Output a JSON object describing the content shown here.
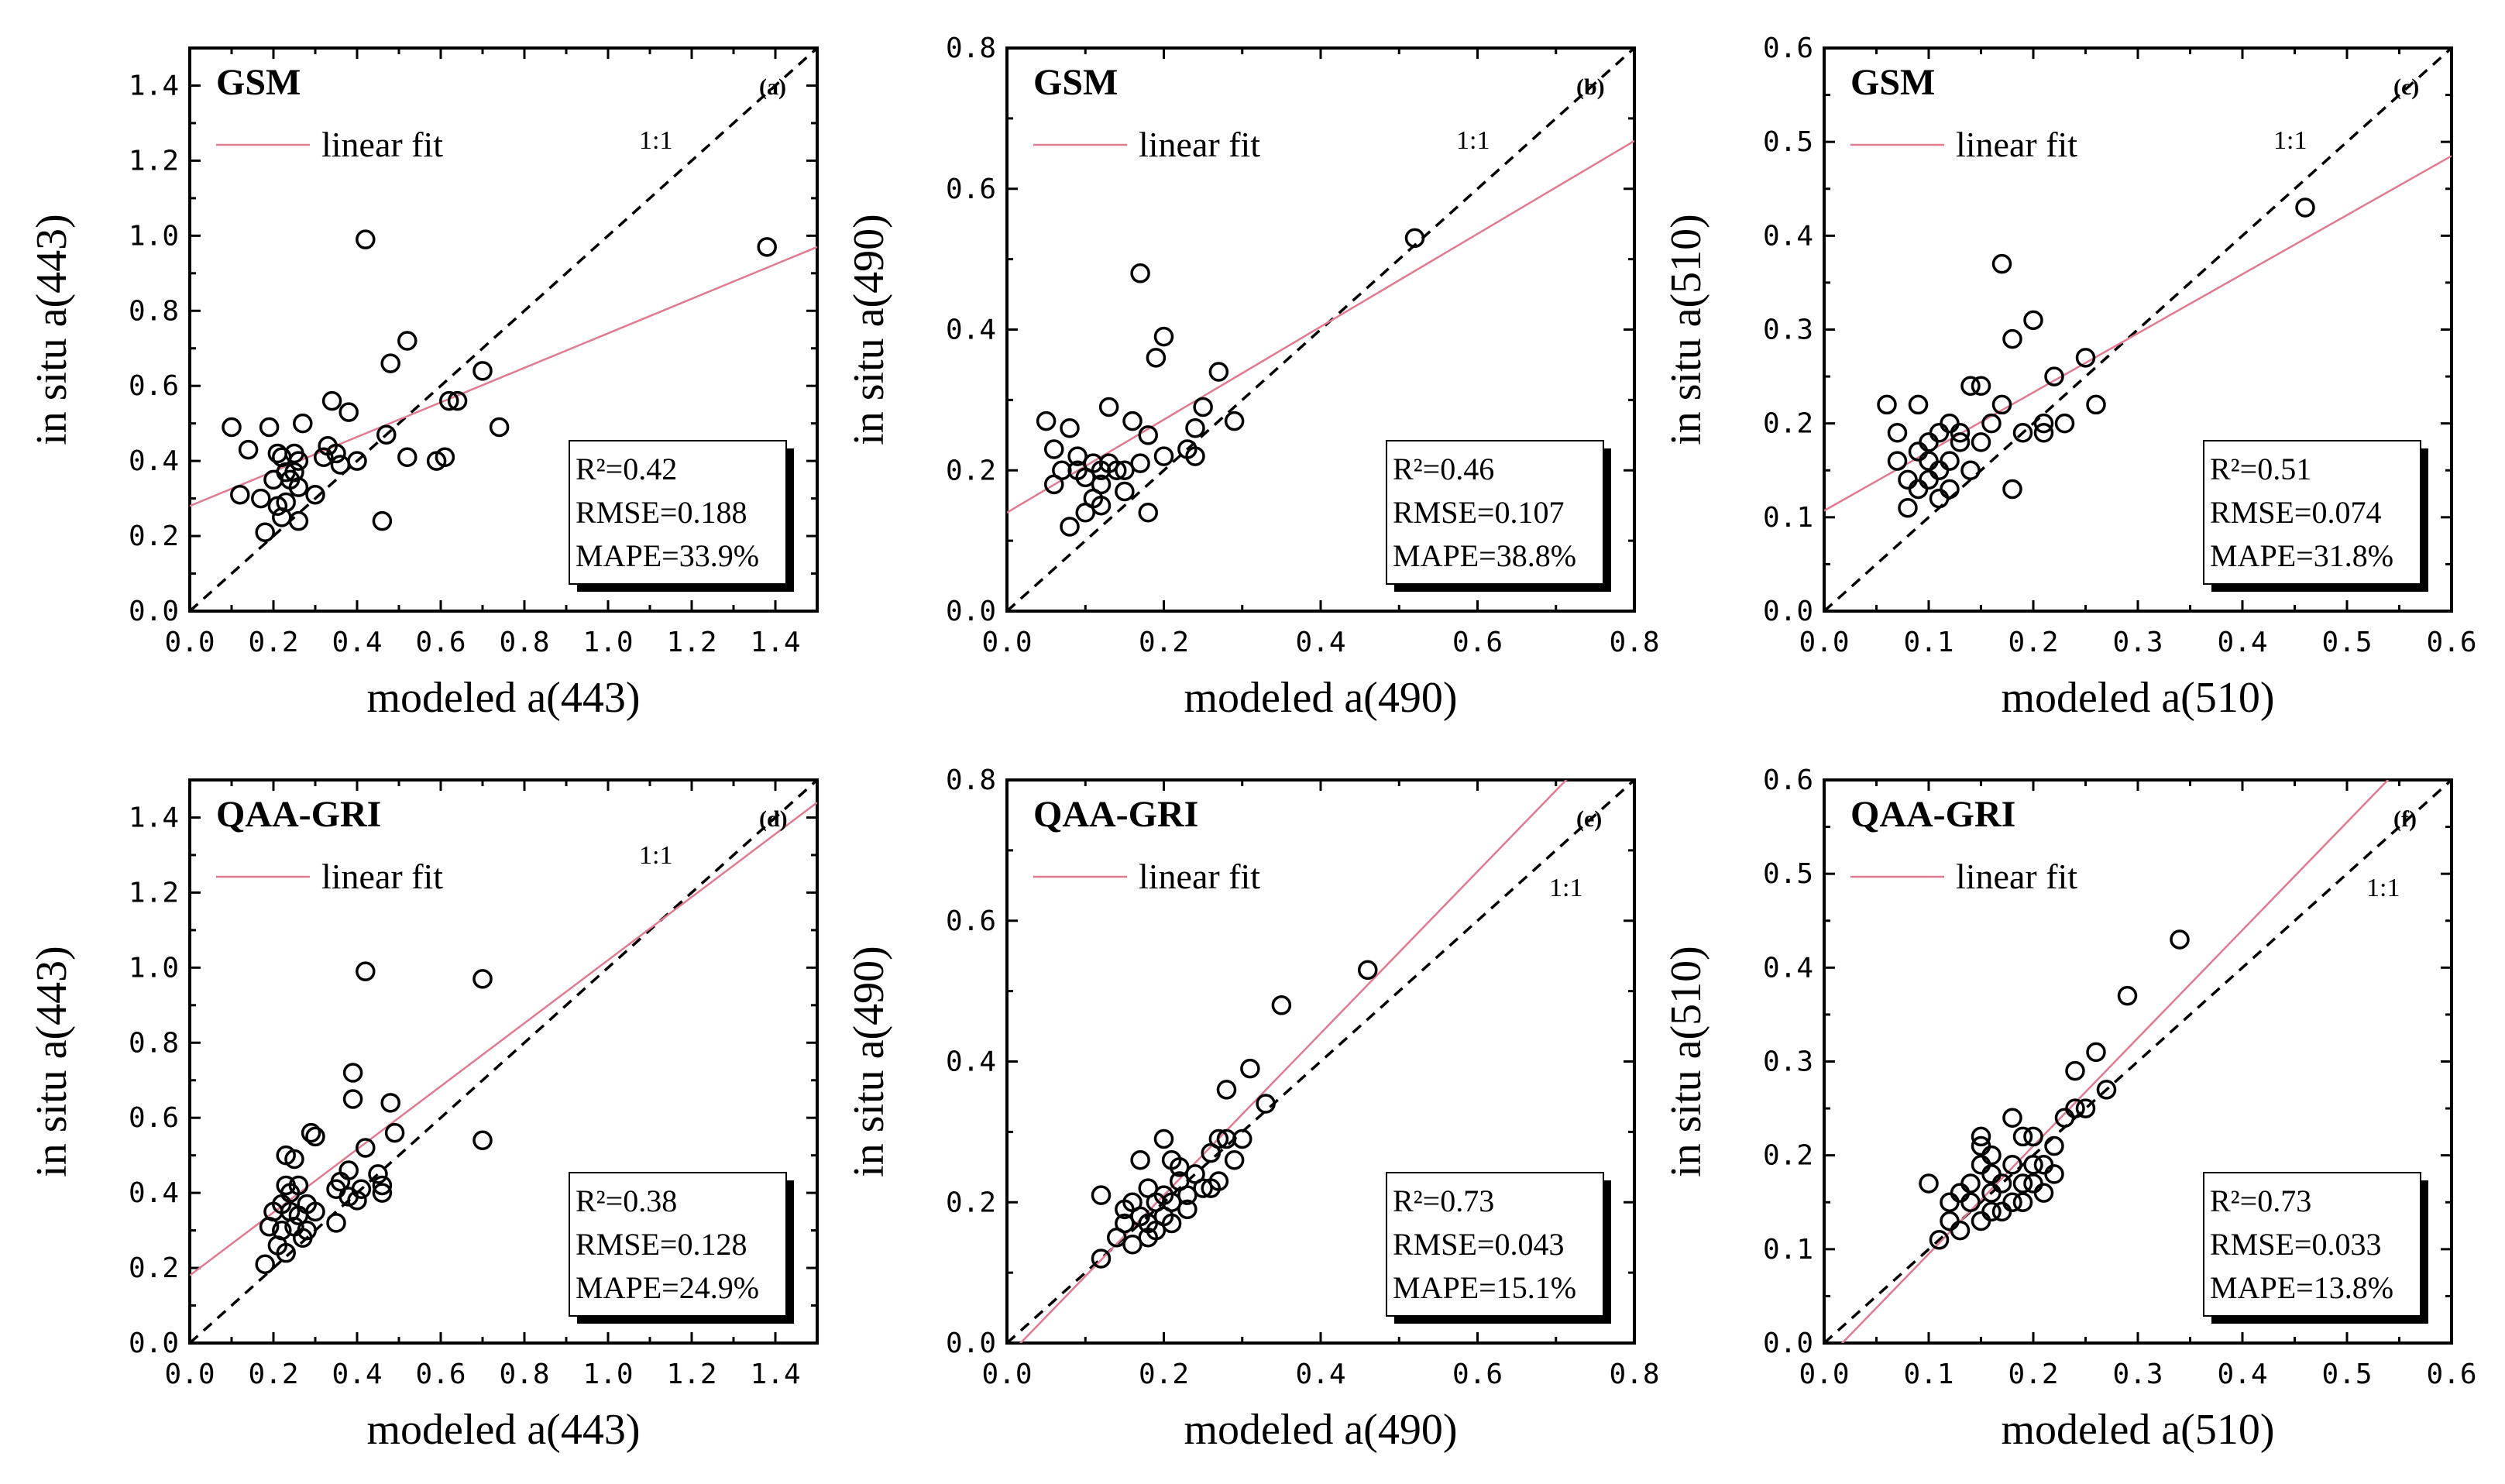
{
  "figure": {
    "colors": {
      "axis": "#000000",
      "fit_line": "#e07a8f",
      "one_to_one": "#000000",
      "marker": "#000000"
    }
  },
  "chart_data": [
    {
      "id": "a",
      "type": "scatter",
      "method": "GSM",
      "tag": "(a)",
      "xlabel": "modeled a(443)",
      "ylabel": "in situ a(443)",
      "xlim": [
        0,
        1.5
      ],
      "ylim": [
        0,
        1.5
      ],
      "xticks": [
        "0.0",
        "0.2",
        "0.4",
        "0.6",
        "0.8",
        "1.0",
        "1.2",
        "1.4"
      ],
      "yticks": [
        "0.0",
        "0.2",
        "0.4",
        "0.6",
        "0.8",
        "1.0",
        "1.2",
        "1.4"
      ],
      "legend_label": "linear fit",
      "ref_label": "1:1",
      "stats": [
        "R²=0.42",
        "RMSE=0.188",
        "MAPE=33.9%"
      ],
      "fit": {
        "slope": 0.46,
        "intercept": 0.28
      },
      "points": [
        [
          0.1,
          0.49
        ],
        [
          0.12,
          0.31
        ],
        [
          0.14,
          0.43
        ],
        [
          0.17,
          0.3
        ],
        [
          0.18,
          0.21
        ],
        [
          0.19,
          0.49
        ],
        [
          0.2,
          0.35
        ],
        [
          0.21,
          0.42
        ],
        [
          0.21,
          0.28
        ],
        [
          0.22,
          0.41
        ],
        [
          0.22,
          0.25
        ],
        [
          0.23,
          0.29
        ],
        [
          0.23,
          0.37
        ],
        [
          0.24,
          0.35
        ],
        [
          0.25,
          0.42
        ],
        [
          0.25,
          0.37
        ],
        [
          0.26,
          0.4
        ],
        [
          0.26,
          0.33
        ],
        [
          0.26,
          0.24
        ],
        [
          0.27,
          0.5
        ],
        [
          0.3,
          0.31
        ],
        [
          0.32,
          0.41
        ],
        [
          0.33,
          0.44
        ],
        [
          0.34,
          0.56
        ],
        [
          0.35,
          0.42
        ],
        [
          0.36,
          0.39
        ],
        [
          0.38,
          0.53
        ],
        [
          0.4,
          0.4
        ],
        [
          0.42,
          0.99
        ],
        [
          0.46,
          0.24
        ],
        [
          0.47,
          0.47
        ],
        [
          0.48,
          0.66
        ],
        [
          0.52,
          0.41
        ],
        [
          0.52,
          0.72
        ],
        [
          0.59,
          0.4
        ],
        [
          0.61,
          0.41
        ],
        [
          0.62,
          0.56
        ],
        [
          0.64,
          0.56
        ],
        [
          0.7,
          0.64
        ],
        [
          0.74,
          0.49
        ],
        [
          1.38,
          0.97
        ]
      ]
    },
    {
      "id": "b",
      "type": "scatter",
      "method": "GSM",
      "tag": "(b)",
      "xlabel": "modeled a(490)",
      "ylabel": "in situ a(490)",
      "xlim": [
        0,
        0.8
      ],
      "ylim": [
        0,
        0.8
      ],
      "xticks": [
        "0.0",
        "0.2",
        "0.4",
        "0.6",
        "0.8"
      ],
      "yticks": [
        "0.0",
        "0.2",
        "0.4",
        "0.6",
        "0.8"
      ],
      "legend_label": "linear fit",
      "ref_label": "1:1",
      "stats": [
        "R²=0.46",
        "RMSE=0.107",
        "MAPE=38.8%"
      ],
      "fit": {
        "slope": 0.66,
        "intercept": 0.14
      },
      "points": [
        [
          0.05,
          0.27
        ],
        [
          0.06,
          0.23
        ],
        [
          0.06,
          0.18
        ],
        [
          0.07,
          0.2
        ],
        [
          0.08,
          0.12
        ],
        [
          0.08,
          0.26
        ],
        [
          0.09,
          0.22
        ],
        [
          0.09,
          0.2
        ],
        [
          0.1,
          0.14
        ],
        [
          0.1,
          0.19
        ],
        [
          0.11,
          0.21
        ],
        [
          0.11,
          0.16
        ],
        [
          0.12,
          0.2
        ],
        [
          0.12,
          0.18
        ],
        [
          0.12,
          0.15
        ],
        [
          0.13,
          0.21
        ],
        [
          0.13,
          0.29
        ],
        [
          0.14,
          0.2
        ],
        [
          0.15,
          0.2
        ],
        [
          0.15,
          0.17
        ],
        [
          0.16,
          0.27
        ],
        [
          0.17,
          0.21
        ],
        [
          0.17,
          0.48
        ],
        [
          0.18,
          0.14
        ],
        [
          0.18,
          0.25
        ],
        [
          0.19,
          0.36
        ],
        [
          0.2,
          0.39
        ],
        [
          0.2,
          0.22
        ],
        [
          0.23,
          0.23
        ],
        [
          0.24,
          0.22
        ],
        [
          0.24,
          0.26
        ],
        [
          0.25,
          0.29
        ],
        [
          0.27,
          0.34
        ],
        [
          0.29,
          0.27
        ],
        [
          0.52,
          0.53
        ]
      ]
    },
    {
      "id": "c",
      "type": "scatter",
      "method": "GSM",
      "tag": "(c)",
      "xlabel": "modeled a(510)",
      "ylabel": "in situ a(510)",
      "xlim": [
        0,
        0.6
      ],
      "ylim": [
        0,
        0.6
      ],
      "xticks": [
        "0.0",
        "0.1",
        "0.2",
        "0.3",
        "0.4",
        "0.5",
        "0.6"
      ],
      "yticks": [
        "0.0",
        "0.1",
        "0.2",
        "0.3",
        "0.4",
        "0.5",
        "0.6"
      ],
      "legend_label": "linear fit",
      "ref_label": "1:1",
      "stats": [
        "R²=0.51",
        "RMSE=0.074",
        "MAPE=31.8%"
      ],
      "fit": {
        "slope": 0.63,
        "intercept": 0.107
      },
      "points": [
        [
          0.06,
          0.22
        ],
        [
          0.07,
          0.19
        ],
        [
          0.07,
          0.16
        ],
        [
          0.08,
          0.14
        ],
        [
          0.08,
          0.11
        ],
        [
          0.09,
          0.22
        ],
        [
          0.09,
          0.17
        ],
        [
          0.09,
          0.13
        ],
        [
          0.1,
          0.18
        ],
        [
          0.1,
          0.14
        ],
        [
          0.1,
          0.16
        ],
        [
          0.11,
          0.19
        ],
        [
          0.11,
          0.15
        ],
        [
          0.11,
          0.12
        ],
        [
          0.12,
          0.16
        ],
        [
          0.12,
          0.2
        ],
        [
          0.12,
          0.13
        ],
        [
          0.13,
          0.19
        ],
        [
          0.13,
          0.18
        ],
        [
          0.14,
          0.24
        ],
        [
          0.14,
          0.15
        ],
        [
          0.15,
          0.18
        ],
        [
          0.15,
          0.24
        ],
        [
          0.16,
          0.2
        ],
        [
          0.17,
          0.37
        ],
        [
          0.17,
          0.22
        ],
        [
          0.18,
          0.13
        ],
        [
          0.18,
          0.29
        ],
        [
          0.19,
          0.19
        ],
        [
          0.2,
          0.31
        ],
        [
          0.21,
          0.2
        ],
        [
          0.21,
          0.19
        ],
        [
          0.22,
          0.25
        ],
        [
          0.23,
          0.2
        ],
        [
          0.25,
          0.27
        ],
        [
          0.26,
          0.22
        ],
        [
          0.46,
          0.43
        ]
      ]
    },
    {
      "id": "d",
      "type": "scatter",
      "method": "QAA-GRI",
      "tag": "(d)",
      "xlabel": "modeled a(443)",
      "ylabel": "in situ a(443)",
      "xlim": [
        0,
        1.5
      ],
      "ylim": [
        0,
        1.5
      ],
      "xticks": [
        "0.0",
        "0.2",
        "0.4",
        "0.6",
        "0.8",
        "1.0",
        "1.2",
        "1.4"
      ],
      "yticks": [
        "0.0",
        "0.2",
        "0.4",
        "0.6",
        "0.8",
        "1.0",
        "1.2",
        "1.4"
      ],
      "legend_label": "linear fit",
      "ref_label": "1:1",
      "stats": [
        "R²=0.38",
        "RMSE=0.128",
        "MAPE=24.9%"
      ],
      "fit": {
        "slope": 0.84,
        "intercept": 0.18
      },
      "points": [
        [
          0.18,
          0.21
        ],
        [
          0.19,
          0.31
        ],
        [
          0.2,
          0.35
        ],
        [
          0.21,
          0.26
        ],
        [
          0.22,
          0.37
        ],
        [
          0.22,
          0.3
        ],
        [
          0.23,
          0.42
        ],
        [
          0.23,
          0.5
        ],
        [
          0.23,
          0.24
        ],
        [
          0.24,
          0.35
        ],
        [
          0.24,
          0.4
        ],
        [
          0.25,
          0.49
        ],
        [
          0.25,
          0.31
        ],
        [
          0.26,
          0.42
        ],
        [
          0.26,
          0.34
        ],
        [
          0.27,
          0.28
        ],
        [
          0.28,
          0.37
        ],
        [
          0.28,
          0.3
        ],
        [
          0.29,
          0.56
        ],
        [
          0.3,
          0.55
        ],
        [
          0.3,
          0.35
        ],
        [
          0.35,
          0.32
        ],
        [
          0.35,
          0.41
        ],
        [
          0.36,
          0.43
        ],
        [
          0.38,
          0.39
        ],
        [
          0.38,
          0.46
        ],
        [
          0.39,
          0.72
        ],
        [
          0.39,
          0.65
        ],
        [
          0.4,
          0.38
        ],
        [
          0.41,
          0.41
        ],
        [
          0.42,
          0.99
        ],
        [
          0.42,
          0.52
        ],
        [
          0.45,
          0.45
        ],
        [
          0.46,
          0.4
        ],
        [
          0.46,
          0.42
        ],
        [
          0.48,
          0.64
        ],
        [
          0.49,
          0.56
        ],
        [
          0.7,
          0.97
        ],
        [
          0.7,
          0.54
        ]
      ]
    },
    {
      "id": "e",
      "type": "scatter",
      "method": "QAA-GRI",
      "tag": "(e)",
      "xlabel": "modeled a(490)",
      "ylabel": "in situ a(490)",
      "xlim": [
        0,
        0.8
      ],
      "ylim": [
        0,
        0.8
      ],
      "xticks": [
        "0.0",
        "0.2",
        "0.4",
        "0.6",
        "0.8"
      ],
      "yticks": [
        "0.0",
        "0.2",
        "0.4",
        "0.6",
        "0.8"
      ],
      "legend_label": "linear fit",
      "ref_label": "1:1",
      "stats": [
        "R²=0.73",
        "RMSE=0.043",
        "MAPE=15.1%"
      ],
      "fit": {
        "slope": 1.15,
        "intercept": -0.02
      },
      "points": [
        [
          0.12,
          0.21
        ],
        [
          0.12,
          0.12
        ],
        [
          0.14,
          0.15
        ],
        [
          0.15,
          0.17
        ],
        [
          0.15,
          0.19
        ],
        [
          0.16,
          0.14
        ],
        [
          0.16,
          0.2
        ],
        [
          0.17,
          0.26
        ],
        [
          0.17,
          0.18
        ],
        [
          0.18,
          0.15
        ],
        [
          0.18,
          0.22
        ],
        [
          0.18,
          0.17
        ],
        [
          0.19,
          0.2
        ],
        [
          0.19,
          0.16
        ],
        [
          0.2,
          0.21
        ],
        [
          0.2,
          0.18
        ],
        [
          0.2,
          0.29
        ],
        [
          0.21,
          0.17
        ],
        [
          0.21,
          0.26
        ],
        [
          0.21,
          0.2
        ],
        [
          0.22,
          0.23
        ],
        [
          0.22,
          0.25
        ],
        [
          0.23,
          0.21
        ],
        [
          0.23,
          0.19
        ],
        [
          0.24,
          0.24
        ],
        [
          0.25,
          0.22
        ],
        [
          0.26,
          0.22
        ],
        [
          0.26,
          0.27
        ],
        [
          0.27,
          0.29
        ],
        [
          0.27,
          0.23
        ],
        [
          0.28,
          0.29
        ],
        [
          0.28,
          0.36
        ],
        [
          0.29,
          0.26
        ],
        [
          0.3,
          0.29
        ],
        [
          0.31,
          0.39
        ],
        [
          0.33,
          0.34
        ],
        [
          0.35,
          0.48
        ],
        [
          0.46,
          0.53
        ]
      ]
    },
    {
      "id": "f",
      "type": "scatter",
      "method": "QAA-GRI",
      "tag": "(f)",
      "xlabel": "modeled a(510)",
      "ylabel": "in situ a(510)",
      "xlim": [
        0,
        0.6
      ],
      "ylim": [
        0,
        0.6
      ],
      "xticks": [
        "0.0",
        "0.1",
        "0.2",
        "0.3",
        "0.4",
        "0.5",
        "0.6"
      ],
      "yticks": [
        "0.0",
        "0.1",
        "0.2",
        "0.3",
        "0.4",
        "0.5",
        "0.6"
      ],
      "legend_label": "linear fit",
      "ref_label": "1:1",
      "stats": [
        "R²=0.73",
        "RMSE=0.033",
        "MAPE=13.8%"
      ],
      "fit": {
        "slope": 1.15,
        "intercept": -0.02
      },
      "points": [
        [
          0.1,
          0.17
        ],
        [
          0.11,
          0.11
        ],
        [
          0.12,
          0.15
        ],
        [
          0.12,
          0.13
        ],
        [
          0.13,
          0.16
        ],
        [
          0.13,
          0.12
        ],
        [
          0.14,
          0.15
        ],
        [
          0.14,
          0.17
        ],
        [
          0.15,
          0.21
        ],
        [
          0.15,
          0.19
        ],
        [
          0.15,
          0.22
        ],
        [
          0.15,
          0.13
        ],
        [
          0.16,
          0.18
        ],
        [
          0.16,
          0.16
        ],
        [
          0.16,
          0.14
        ],
        [
          0.16,
          0.2
        ],
        [
          0.17,
          0.14
        ],
        [
          0.17,
          0.17
        ],
        [
          0.18,
          0.15
        ],
        [
          0.18,
          0.24
        ],
        [
          0.18,
          0.19
        ],
        [
          0.19,
          0.22
        ],
        [
          0.19,
          0.15
        ],
        [
          0.19,
          0.17
        ],
        [
          0.2,
          0.19
        ],
        [
          0.2,
          0.22
        ],
        [
          0.2,
          0.17
        ],
        [
          0.21,
          0.19
        ],
        [
          0.21,
          0.16
        ],
        [
          0.22,
          0.21
        ],
        [
          0.22,
          0.18
        ],
        [
          0.23,
          0.24
        ],
        [
          0.24,
          0.25
        ],
        [
          0.24,
          0.29
        ],
        [
          0.25,
          0.25
        ],
        [
          0.26,
          0.31
        ],
        [
          0.27,
          0.27
        ],
        [
          0.29,
          0.37
        ],
        [
          0.34,
          0.43
        ]
      ]
    }
  ]
}
